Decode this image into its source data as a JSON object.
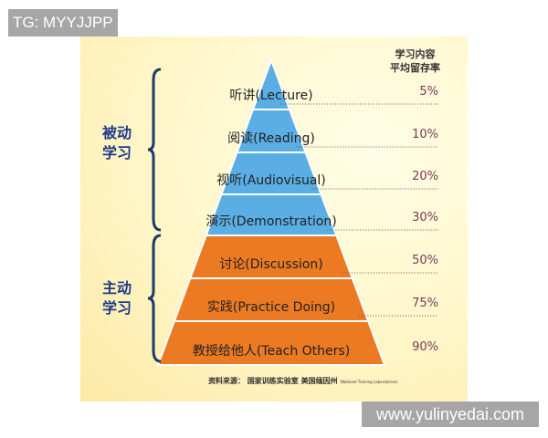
{
  "watermark_top": "TG: MYYJJPP",
  "watermark_bottom": "www.yulinyedai.com",
  "header_line1": "学习内容",
  "header_line2": "平均留存率",
  "groups": [
    "被动学习",
    "主动学习"
  ],
  "levels": [
    {
      "label": "听讲(Lecture)",
      "rate": "5%",
      "color": "#5aaee3"
    },
    {
      "label": "阅读(Reading)",
      "rate": "10%",
      "color": "#5aaee3"
    },
    {
      "label": "视听(Audiovisual)",
      "rate": "20%",
      "color": "#5aaee3"
    },
    {
      "label": "演示(Demonstration)",
      "rate": "30%",
      "color": "#5aaee3"
    },
    {
      "label": "讨论(Discussion)",
      "rate": "50%",
      "color": "#ec7a22"
    },
    {
      "label": "实践(Practice Doing)",
      "rate": "75%",
      "color": "#ec7a22"
    },
    {
      "label": "教授给他人(Teach Others)",
      "rate": "90%",
      "color": "#ec7a22"
    }
  ],
  "source": "资料来源： 国家训练实验室 美国缅因州",
  "source_en": "(National Training Laboratories)"
}
